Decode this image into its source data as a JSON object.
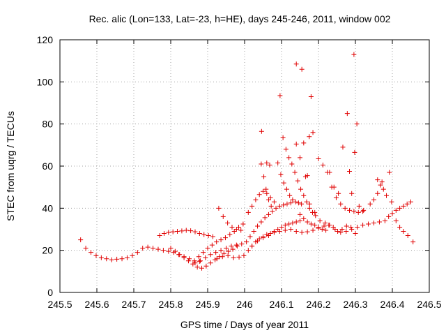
{
  "chart_data": {
    "type": "scatter",
    "title": "Rec. alic (Lon=133, Lat=-23, h=HE), days 245-246, 2011, window 002",
    "xlabel": "GPS time / Days of year 2011",
    "ylabel": "STEC from uqrg / TECUs",
    "xlim": [
      245.5,
      246.5
    ],
    "ylim": [
      0,
      120
    ],
    "xticks": [
      "245.5",
      "245.6",
      "245.7",
      "245.8",
      "245.9",
      "246",
      "246.1",
      "246.2",
      "246.3",
      "246.4",
      "246.5"
    ],
    "yticks": [
      "0",
      "20",
      "40",
      "60",
      "80",
      "100",
      "120"
    ],
    "grid": true,
    "marker": "+",
    "color": "#e00000",
    "points": [
      [
        245.556,
        25.0
      ],
      [
        245.57,
        21.0
      ],
      [
        245.584,
        19.0
      ],
      [
        245.598,
        17.5
      ],
      [
        245.612,
        16.5
      ],
      [
        245.626,
        16.0
      ],
      [
        245.64,
        15.5
      ],
      [
        245.654,
        15.8
      ],
      [
        245.668,
        16.0
      ],
      [
        245.682,
        16.5
      ],
      [
        245.696,
        17.5
      ],
      [
        245.71,
        19.0
      ],
      [
        245.724,
        21.0
      ],
      [
        245.738,
        21.5
      ],
      [
        245.752,
        21.0
      ],
      [
        245.766,
        20.5
      ],
      [
        245.78,
        20.0
      ],
      [
        245.794,
        19.5
      ],
      [
        245.808,
        19.0
      ],
      [
        245.822,
        18.0
      ],
      [
        245.836,
        17.0
      ],
      [
        245.85,
        16.0
      ],
      [
        245.864,
        15.0
      ],
      [
        245.878,
        14.8
      ],
      [
        245.77,
        27.0
      ],
      [
        245.782,
        28.0
      ],
      [
        245.794,
        28.5
      ],
      [
        245.806,
        28.8
      ],
      [
        245.818,
        29.0
      ],
      [
        245.83,
        29.2
      ],
      [
        245.842,
        29.5
      ],
      [
        245.854,
        29.3
      ],
      [
        245.866,
        28.8
      ],
      [
        245.878,
        28.0
      ],
      [
        245.89,
        27.5
      ],
      [
        245.902,
        27.0
      ],
      [
        245.914,
        26.5
      ],
      [
        245.8,
        21.0
      ],
      [
        245.812,
        19.5
      ],
      [
        245.824,
        18.0
      ],
      [
        245.836,
        16.5
      ],
      [
        245.848,
        15.0
      ],
      [
        245.86,
        13.5
      ],
      [
        245.872,
        12.0
      ],
      [
        245.884,
        11.5
      ],
      [
        245.896,
        12.5
      ],
      [
        245.908,
        14.0
      ],
      [
        245.92,
        15.5
      ],
      [
        245.932,
        17.0
      ],
      [
        245.944,
        18.5
      ],
      [
        245.956,
        19.5
      ],
      [
        245.968,
        20.5
      ],
      [
        245.98,
        22.0
      ],
      [
        245.992,
        23.0
      ],
      [
        245.876,
        17.0
      ],
      [
        245.888,
        19.0
      ],
      [
        245.9,
        21.0
      ],
      [
        245.912,
        22.5
      ],
      [
        245.924,
        24.0
      ],
      [
        245.936,
        25.0
      ],
      [
        245.948,
        26.0
      ],
      [
        245.96,
        27.5
      ],
      [
        245.972,
        29.0
      ],
      [
        245.984,
        31.0
      ],
      [
        245.996,
        32.5
      ],
      [
        245.866,
        14.0
      ],
      [
        245.88,
        15.0
      ],
      [
        245.894,
        16.5
      ],
      [
        245.908,
        18.0
      ],
      [
        245.922,
        19.0
      ],
      [
        245.936,
        20.0
      ],
      [
        245.95,
        21.0
      ],
      [
        245.964,
        22.0
      ],
      [
        245.978,
        22.5
      ],
      [
        245.93,
        40.0
      ],
      [
        245.942,
        36.0
      ],
      [
        245.954,
        33.0
      ],
      [
        245.966,
        31.0
      ],
      [
        245.978,
        30.0
      ],
      [
        245.99,
        29.5
      ],
      [
        245.925,
        16.0
      ],
      [
        245.94,
        17.0
      ],
      [
        245.955,
        17.5
      ],
      [
        245.97,
        16.5
      ],
      [
        245.985,
        16.8
      ],
      [
        245.998,
        17.5
      ],
      [
        246.01,
        20.0
      ],
      [
        246.02,
        22.0
      ],
      [
        246.03,
        24.0
      ],
      [
        246.04,
        25.5
      ],
      [
        246.05,
        26.5
      ],
      [
        246.06,
        27.5
      ],
      [
        246.07,
        28.0
      ],
      [
        246.08,
        29.0
      ],
      [
        246.09,
        30.0
      ],
      [
        246.1,
        31.0
      ],
      [
        246.11,
        32.0
      ],
      [
        246.12,
        32.5
      ],
      [
        246.13,
        33.0
      ],
      [
        246.14,
        33.5
      ],
      [
        246.15,
        34.0
      ],
      [
        246.005,
        24.0
      ],
      [
        246.015,
        26.5
      ],
      [
        246.025,
        29.0
      ],
      [
        246.035,
        31.5
      ],
      [
        246.045,
        33.5
      ],
      [
        246.055,
        35.5
      ],
      [
        246.065,
        37.0
      ],
      [
        246.075,
        38.5
      ],
      [
        246.085,
        40.0
      ],
      [
        246.095,
        41.0
      ],
      [
        246.105,
        41.5
      ],
      [
        246.115,
        42.0
      ],
      [
        246.125,
        42.5
      ],
      [
        246.01,
        38.0
      ],
      [
        246.02,
        41.0
      ],
      [
        246.03,
        44.0
      ],
      [
        246.04,
        46.5
      ],
      [
        246.05,
        48.0
      ],
      [
        246.06,
        47.0
      ],
      [
        246.07,
        45.0
      ],
      [
        246.08,
        43.0
      ],
      [
        246.02,
        22.0
      ],
      [
        246.035,
        24.5
      ],
      [
        246.05,
        26.0
      ],
      [
        246.065,
        27.0
      ],
      [
        246.08,
        28.5
      ],
      [
        246.095,
        29.0
      ],
      [
        246.11,
        29.5
      ],
      [
        246.125,
        30.0
      ],
      [
        246.14,
        29.0
      ],
      [
        246.155,
        28.5
      ],
      [
        246.17,
        28.8
      ],
      [
        246.185,
        29.5
      ],
      [
        246.2,
        30.5
      ],
      [
        246.215,
        31.5
      ],
      [
        246.23,
        32.0
      ],
      [
        246.245,
        30.0
      ],
      [
        246.26,
        28.5
      ],
      [
        246.275,
        29.0
      ],
      [
        246.29,
        30.0
      ],
      [
        246.305,
        31.0
      ],
      [
        246.32,
        32.0
      ],
      [
        246.335,
        32.5
      ],
      [
        246.35,
        33.0
      ],
      [
        246.365,
        33.5
      ],
      [
        246.38,
        34.0
      ],
      [
        246.39,
        36.0
      ],
      [
        246.4,
        37.5
      ],
      [
        246.41,
        39.0
      ],
      [
        246.42,
        40.0
      ],
      [
        246.43,
        41.0
      ],
      [
        246.44,
        42.0
      ],
      [
        246.45,
        43.0
      ],
      [
        246.41,
        34.0
      ],
      [
        246.42,
        31.0
      ],
      [
        246.43,
        29.0
      ],
      [
        246.442,
        27.0
      ],
      [
        246.456,
        24.0
      ],
      [
        246.045,
        61.0
      ],
      [
        246.052,
        55.0
      ],
      [
        246.058,
        49.0
      ],
      [
        246.065,
        44.0
      ],
      [
        246.072,
        41.0
      ],
      [
        246.06,
        61.5
      ],
      [
        246.068,
        60.5
      ],
      [
        246.046,
        76.5
      ],
      [
        246.09,
        61.5
      ],
      [
        246.098,
        56.0
      ],
      [
        246.106,
        52.0
      ],
      [
        246.114,
        49.0
      ],
      [
        246.122,
        46.0
      ],
      [
        246.13,
        44.0
      ],
      [
        246.138,
        43.0
      ],
      [
        246.146,
        42.5
      ],
      [
        246.154,
        42.0
      ],
      [
        246.096,
        93.5
      ],
      [
        246.104,
        73.5
      ],
      [
        246.112,
        68.0
      ],
      [
        246.12,
        64.0
      ],
      [
        246.128,
        61.0
      ],
      [
        246.136,
        57.0
      ],
      [
        246.144,
        53.0
      ],
      [
        246.152,
        49.0
      ],
      [
        246.16,
        46.0
      ],
      [
        246.168,
        43.0
      ],
      [
        246.176,
        40.0
      ],
      [
        246.184,
        38.0
      ],
      [
        246.192,
        36.5
      ],
      [
        246.14,
        108.5
      ],
      [
        246.155,
        106.0
      ],
      [
        246.14,
        70.5
      ],
      [
        246.16,
        71.0
      ],
      [
        246.175,
        74.0
      ],
      [
        246.185,
        76.0
      ],
      [
        246.15,
        64.0
      ],
      [
        246.165,
        55.0
      ],
      [
        246.18,
        93.0
      ],
      [
        246.15,
        37.0
      ],
      [
        246.16,
        35.0
      ],
      [
        246.17,
        33.5
      ],
      [
        246.18,
        32.5
      ],
      [
        246.19,
        32.0
      ],
      [
        246.2,
        31.0
      ],
      [
        246.21,
        30.0
      ],
      [
        246.22,
        29.5
      ],
      [
        246.2,
        63.5
      ],
      [
        246.212,
        60.5
      ],
      [
        246.224,
        57.0
      ],
      [
        246.236,
        50.0
      ],
      [
        246.248,
        45.0
      ],
      [
        246.26,
        42.0
      ],
      [
        246.272,
        40.0
      ],
      [
        246.284,
        39.0
      ],
      [
        246.296,
        38.5
      ],
      [
        246.308,
        38.0
      ],
      [
        246.32,
        38.5
      ],
      [
        246.23,
        57.0
      ],
      [
        246.242,
        50.0
      ],
      [
        246.254,
        47.0
      ],
      [
        246.266,
        69.0
      ],
      [
        246.278,
        85.0
      ],
      [
        246.284,
        57.5
      ],
      [
        246.29,
        47.0
      ],
      [
        246.296,
        113.0
      ],
      [
        246.304,
        80.0
      ],
      [
        246.298,
        66.5
      ],
      [
        246.31,
        41.0
      ],
      [
        246.322,
        39.0
      ],
      [
        246.34,
        42.0
      ],
      [
        246.35,
        44.0
      ],
      [
        246.36,
        47.0
      ],
      [
        246.368,
        51.0
      ],
      [
        246.376,
        49.0
      ],
      [
        246.384,
        46.0
      ],
      [
        246.36,
        53.5
      ],
      [
        246.372,
        52.5
      ],
      [
        246.392,
        57.0
      ],
      [
        246.398,
        43.0
      ],
      [
        246.17,
        55.5
      ],
      [
        246.176,
        42.0
      ],
      [
        246.19,
        38.0
      ],
      [
        246.204,
        34.0
      ],
      [
        246.218,
        33.0
      ],
      [
        246.228,
        32.0
      ],
      [
        246.24,
        31.0
      ],
      [
        246.252,
        29.0
      ],
      [
        246.264,
        30.0
      ],
      [
        246.276,
        31.5
      ],
      [
        246.288,
        31.0
      ],
      [
        246.3,
        28.0
      ]
    ]
  }
}
